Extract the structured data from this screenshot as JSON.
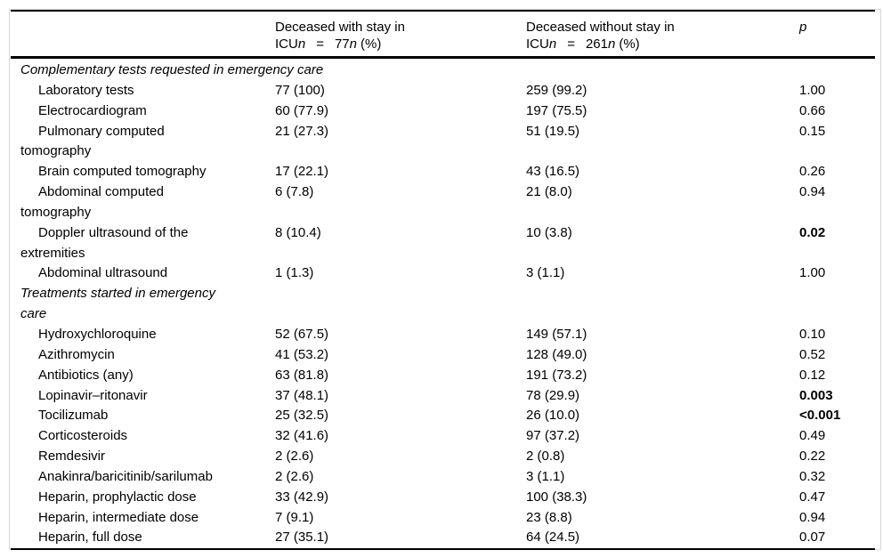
{
  "page": {
    "background_color": "#ffffff",
    "frame_border_color": "#d8d8d8",
    "rule_color": "#000000",
    "text_color": "#000000"
  },
  "table": {
    "header": {
      "col2": {
        "line1": "Deceased with stay in",
        "prefix": "ICU",
        "n1": "n",
        "eq": "=",
        "count": "77",
        "n2": "n",
        "unit": "(%)"
      },
      "col3": {
        "line1": "Deceased without stay in",
        "prefix": "ICU",
        "n1": "n",
        "eq": "=",
        "count": "261",
        "n2": "n",
        "unit": "(%)"
      },
      "p_label": "p"
    },
    "sections": [
      {
        "title_lines": [
          "Complementary tests requested in emergency care"
        ],
        "rows": [
          {
            "label_lines": [
              "Laboratory tests"
            ],
            "icu": "77 (100)",
            "no_icu": "259 (99.2)",
            "p": "1.00",
            "p_bold": false
          },
          {
            "label_lines": [
              "Electrocardiogram"
            ],
            "icu": "60 (77.9)",
            "no_icu": "197 (75.5)",
            "p": "0.66",
            "p_bold": false
          },
          {
            "label_lines": [
              "Pulmonary computed",
              "tomography"
            ],
            "icu": "21 (27.3)",
            "no_icu": "51 (19.5)",
            "p": "0.15",
            "p_bold": false
          },
          {
            "label_lines": [
              "Brain computed tomography"
            ],
            "icu": "17 (22.1)",
            "no_icu": "43 (16.5)",
            "p": "0.26",
            "p_bold": false
          },
          {
            "label_lines": [
              "Abdominal computed",
              "tomography"
            ],
            "icu": "6 (7.8)",
            "no_icu": "21 (8.0)",
            "p": "0.94",
            "p_bold": false
          },
          {
            "label_lines": [
              "Doppler ultrasound of the",
              "extremities"
            ],
            "icu": "8 (10.4)",
            "no_icu": "10 (3.8)",
            "p": "0.02",
            "p_bold": true
          },
          {
            "label_lines": [
              "Abdominal ultrasound"
            ],
            "icu": "1 (1.3)",
            "no_icu": "3 (1.1)",
            "p": "1.00",
            "p_bold": false
          }
        ]
      },
      {
        "title_lines": [
          "Treatments started in emergency",
          "care"
        ],
        "rows": [
          {
            "label_lines": [
              "Hydroxychloroquine"
            ],
            "icu": "52 (67.5)",
            "no_icu": "149 (57.1)",
            "p": "0.10",
            "p_bold": false
          },
          {
            "label_lines": [
              "Azithromycin"
            ],
            "icu": "41 (53.2)",
            "no_icu": "128 (49.0)",
            "p": "0.52",
            "p_bold": false
          },
          {
            "label_lines": [
              "Antibiotics (any)"
            ],
            "icu": "63 (81.8)",
            "no_icu": "191 (73.2)",
            "p": "0.12",
            "p_bold": false
          },
          {
            "label_lines": [
              "Lopinavir–ritonavir"
            ],
            "icu": "37 (48.1)",
            "no_icu": "78 (29.9)",
            "p": "0.003",
            "p_bold": true
          },
          {
            "label_lines": [
              "Tocilizumab"
            ],
            "icu": "25 (32.5)",
            "no_icu": "26 (10.0)",
            "p": "<0.001",
            "p_bold": true
          },
          {
            "label_lines": [
              "Corticosteroids"
            ],
            "icu": "32 (41.6)",
            "no_icu": "97 (37.2)",
            "p": "0.49",
            "p_bold": false
          },
          {
            "label_lines": [
              "Remdesivir"
            ],
            "icu": "2 (2.6)",
            "no_icu": "2 (0.8)",
            "p": "0.22",
            "p_bold": false
          },
          {
            "label_lines": [
              "Anakinra/baricitinib/sarilumab"
            ],
            "icu": "2 (2.6)",
            "no_icu": "3 (1.1)",
            "p": "0.32",
            "p_bold": false
          },
          {
            "label_lines": [
              "Heparin, prophylactic dose"
            ],
            "icu": "33 (42.9)",
            "no_icu": "100 (38.3)",
            "p": "0.47",
            "p_bold": false
          },
          {
            "label_lines": [
              "Heparin, intermediate dose"
            ],
            "icu": "7 (9.1)",
            "no_icu": "23 (8.8)",
            "p": "0.94",
            "p_bold": false
          },
          {
            "label_lines": [
              "Heparin, full dose"
            ],
            "icu": "27 (35.1)",
            "no_icu": "64 (24.5)",
            "p": "0.07",
            "p_bold": false
          }
        ]
      }
    ]
  }
}
